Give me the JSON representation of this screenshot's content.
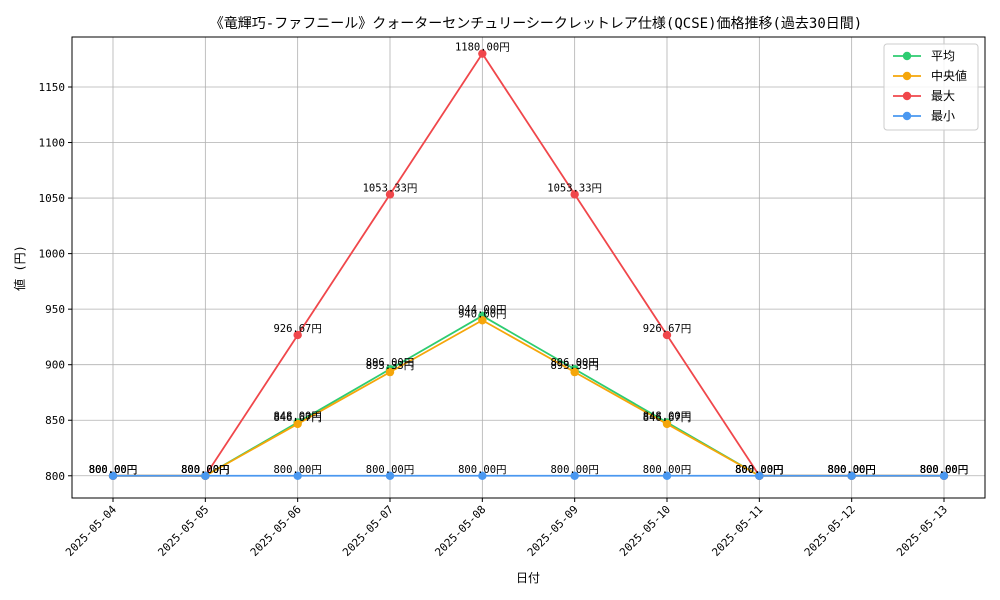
{
  "chart_data": {
    "type": "line",
    "title": "《竜輝巧-ファフニール》クォーターセンチュリーシークレットレア仕様(QCSE)価格推移(過去30日間)",
    "xlabel": "日付",
    "ylabel": "値 (円)",
    "categories": [
      "2025-05-04",
      "2025-05-05",
      "2025-05-06",
      "2025-05-07",
      "2025-05-08",
      "2025-05-09",
      "2025-05-10",
      "2025-05-11",
      "2025-05-12",
      "2025-05-13"
    ],
    "ylim": [
      780,
      1195
    ],
    "yticks": [
      800,
      850,
      900,
      950,
      1000,
      1050,
      1100,
      1150
    ],
    "grid": true,
    "legend_position": "top-right",
    "value_suffix": "円",
    "series": [
      {
        "name": "平均",
        "color": "#2ecc71",
        "values": [
          800.0,
          800.0,
          848.0,
          896.0,
          944.0,
          896.0,
          848.0,
          800.0,
          800.0,
          800.0
        ]
      },
      {
        "name": "中央値",
        "color": "#f5a60a",
        "values": [
          800.0,
          800.0,
          846.67,
          893.33,
          940.0,
          893.33,
          846.67,
          800.0,
          800.0,
          800.0
        ]
      },
      {
        "name": "最大",
        "color": "#f0474b",
        "values": [
          800.0,
          800.0,
          926.67,
          1053.33,
          1180.0,
          1053.33,
          926.67,
          800.0,
          800.0,
          800.0
        ]
      },
      {
        "name": "最小",
        "color": "#4a98f0",
        "values": [
          800.0,
          800.0,
          800.0,
          800.0,
          800.0,
          800.0,
          800.0,
          800.0,
          800.0,
          800.0
        ]
      }
    ]
  }
}
